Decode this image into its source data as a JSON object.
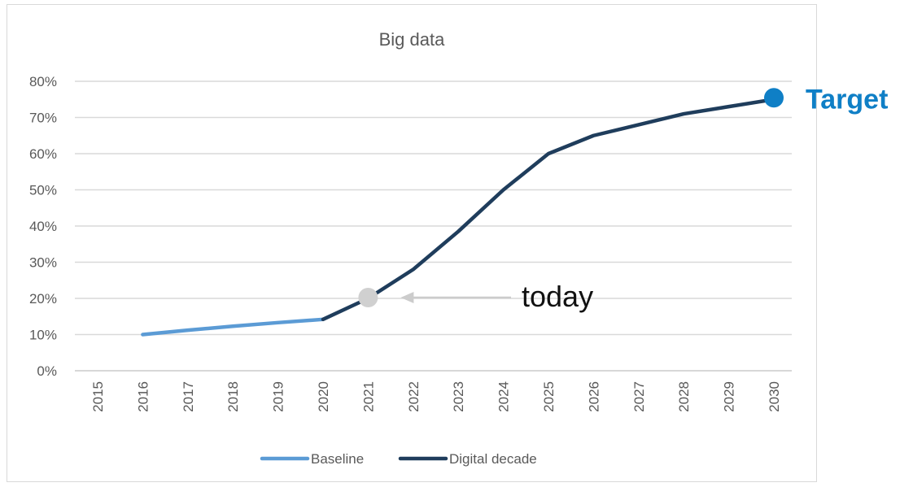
{
  "chart_data": {
    "type": "line",
    "title": "Big data",
    "xlabel": "",
    "ylabel": "",
    "categories": [
      "2015",
      "2016",
      "2017",
      "2018",
      "2019",
      "2020",
      "2021",
      "2022",
      "2023",
      "2024",
      "2025",
      "2026",
      "2027",
      "2028",
      "2029",
      "2030"
    ],
    "y_ticks": [
      "0%",
      "10%",
      "20%",
      "30%",
      "40%",
      "50%",
      "60%",
      "70%",
      "80%"
    ],
    "ylim": [
      0,
      80
    ],
    "grid": true,
    "legend_position": "bottom",
    "series": [
      {
        "name": "Baseline",
        "color": "#5b9bd5",
        "points": [
          [
            2016,
            10
          ],
          [
            2017,
            11.2
          ],
          [
            2018,
            12.3
          ],
          [
            2019,
            13.3
          ],
          [
            2020,
            14.2
          ]
        ]
      },
      {
        "name": "Digital decade",
        "color": "#1f3d5c",
        "points": [
          [
            2020,
            14.2
          ],
          [
            2021,
            20
          ],
          [
            2022,
            28
          ],
          [
            2023,
            38.5
          ],
          [
            2024,
            50
          ],
          [
            2025,
            60
          ],
          [
            2026,
            65
          ],
          [
            2027,
            68
          ],
          [
            2028,
            71
          ],
          [
            2029,
            73
          ],
          [
            2030,
            75
          ]
        ]
      }
    ],
    "annotations": {
      "today": {
        "label": "today",
        "x": 2021,
        "y": 20,
        "marker_color": "#d0d0d0",
        "arrow_color": "#cccccc"
      },
      "target": {
        "label": "Target",
        "x": 2030,
        "y": 75,
        "color": "#0f7fc6"
      }
    }
  }
}
